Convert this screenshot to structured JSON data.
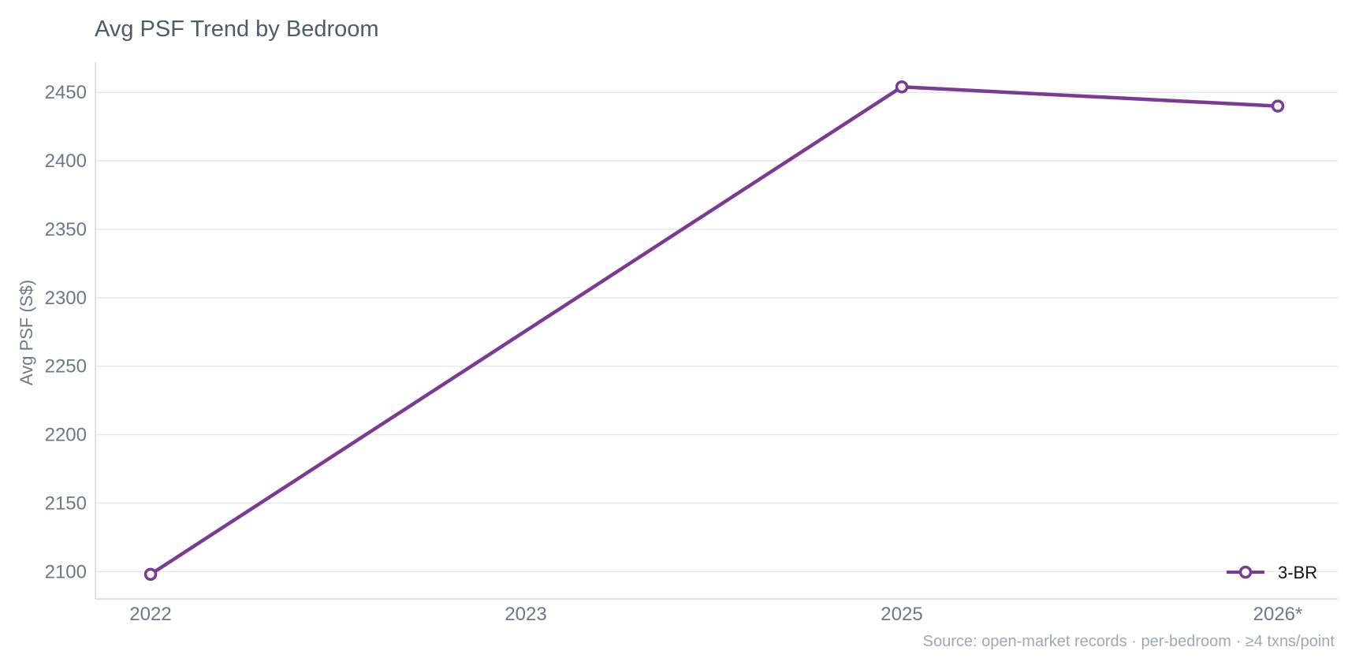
{
  "chart_data": {
    "type": "line",
    "title": "Avg PSF Trend by Bedroom",
    "xlabel": "",
    "ylabel": "Avg PSF (S$)",
    "categories": [
      "2022",
      "2023",
      "2025",
      "2026*"
    ],
    "series": [
      {
        "name": "3-BR",
        "color": "#7b3a96",
        "values": [
          2098,
          null,
          2454,
          2440
        ]
      }
    ],
    "yticks": [
      2100,
      2150,
      2200,
      2250,
      2300,
      2350,
      2400,
      2450
    ],
    "ylim": [
      2080,
      2472
    ],
    "grid": true,
    "legend_position": "bottom-right",
    "source": "Source: open-market records · per-bedroom · ≥4 txns/point"
  }
}
